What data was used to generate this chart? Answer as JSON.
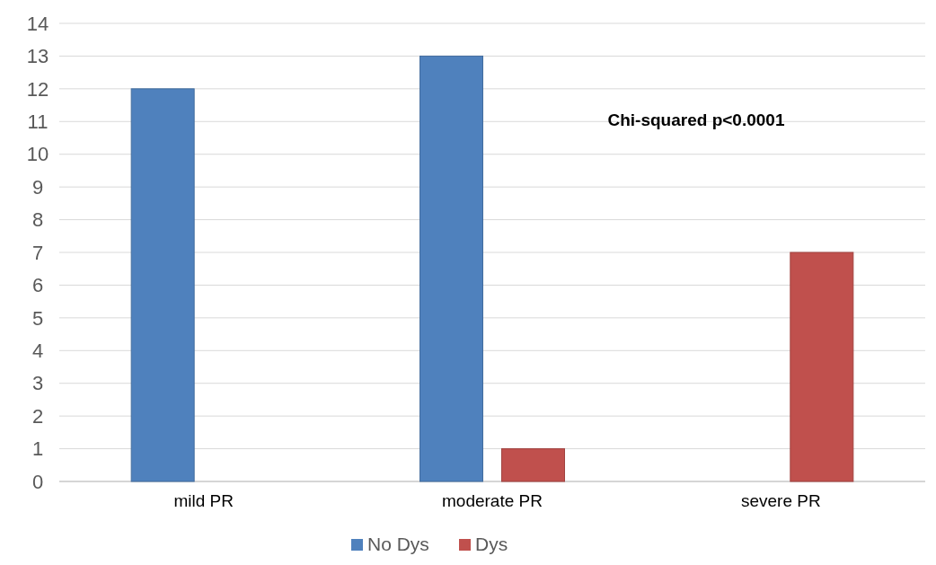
{
  "chart_data": {
    "type": "bar",
    "categories": [
      "mild PR",
      "moderate PR",
      "severe PR"
    ],
    "series": [
      {
        "name": "No Dys",
        "color": "#4f81bd",
        "values": [
          12,
          13,
          0
        ]
      },
      {
        "name": "Dys",
        "color": "#c0504d",
        "values": [
          0,
          1,
          7
        ]
      }
    ],
    "ylim": [
      0,
      14
    ],
    "yticks": [
      0,
      1,
      2,
      3,
      4,
      5,
      6,
      7,
      8,
      9,
      10,
      11,
      12,
      13,
      14
    ],
    "grid": "y",
    "legend": "bottom",
    "annotations": [
      "Chi-squared p<0.0001"
    ]
  }
}
